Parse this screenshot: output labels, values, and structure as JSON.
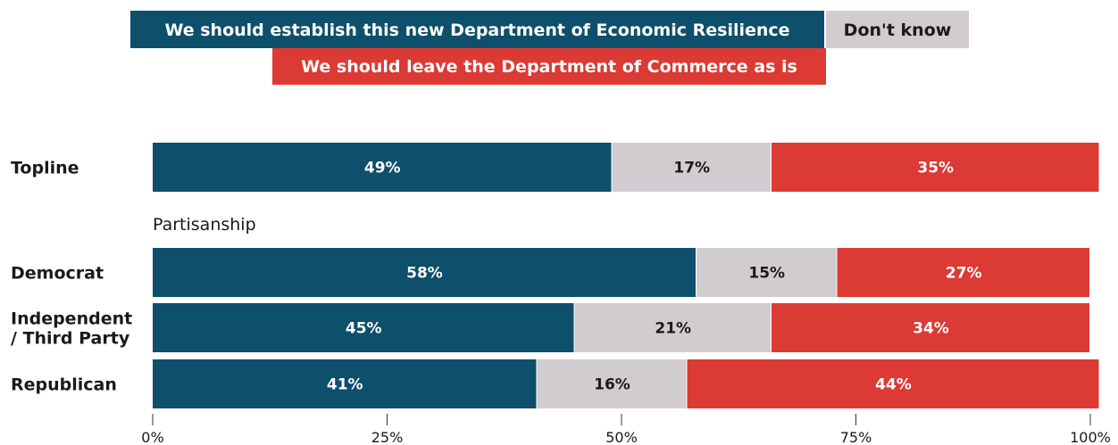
{
  "colors": {
    "establish": "#0e4f6b",
    "dont_know": "#d0ccd0",
    "leave": "#dc3a35",
    "text_dark": "#1a1a1a",
    "text_light": "#ffffff"
  },
  "legend": {
    "establish": "We should establish this new Department of Economic Resilience",
    "dont_know": "Don't know",
    "leave": "We should leave the Department of Commerce as is"
  },
  "chart_data": {
    "type": "bar",
    "orientation": "horizontal",
    "stacked": true,
    "categories": [
      "Topline",
      "Democrat",
      "Independent / Third Party",
      "Republican"
    ],
    "category_lines": [
      [
        "Topline"
      ],
      [
        "Democrat"
      ],
      [
        "Independent",
        "/ Third Party"
      ],
      [
        "Republican"
      ]
    ],
    "groups": [
      {
        "label": "Partisanship",
        "before_index": 1
      }
    ],
    "series": [
      {
        "name": "We should establish this new Department of Economic Resilience",
        "values": [
          49,
          58,
          45,
          41
        ],
        "labels": [
          "49%",
          "58%",
          "45%",
          "41%"
        ]
      },
      {
        "name": "Don't know",
        "values": [
          17,
          15,
          21,
          16
        ],
        "labels": [
          "17%",
          "15%",
          "21%",
          "16%"
        ]
      },
      {
        "name": "We should leave the Department of Commerce as is",
        "values": [
          35,
          27,
          34,
          44
        ],
        "labels": [
          "35%",
          "27%",
          "34%",
          "44%"
        ]
      }
    ],
    "xlim": [
      0,
      100
    ],
    "xticks": [
      0,
      25,
      50,
      75,
      100
    ],
    "xtick_labels": [
      "0%",
      "25%",
      "50%",
      "75%",
      "100%"
    ],
    "grid": false,
    "legend_position": "top"
  }
}
